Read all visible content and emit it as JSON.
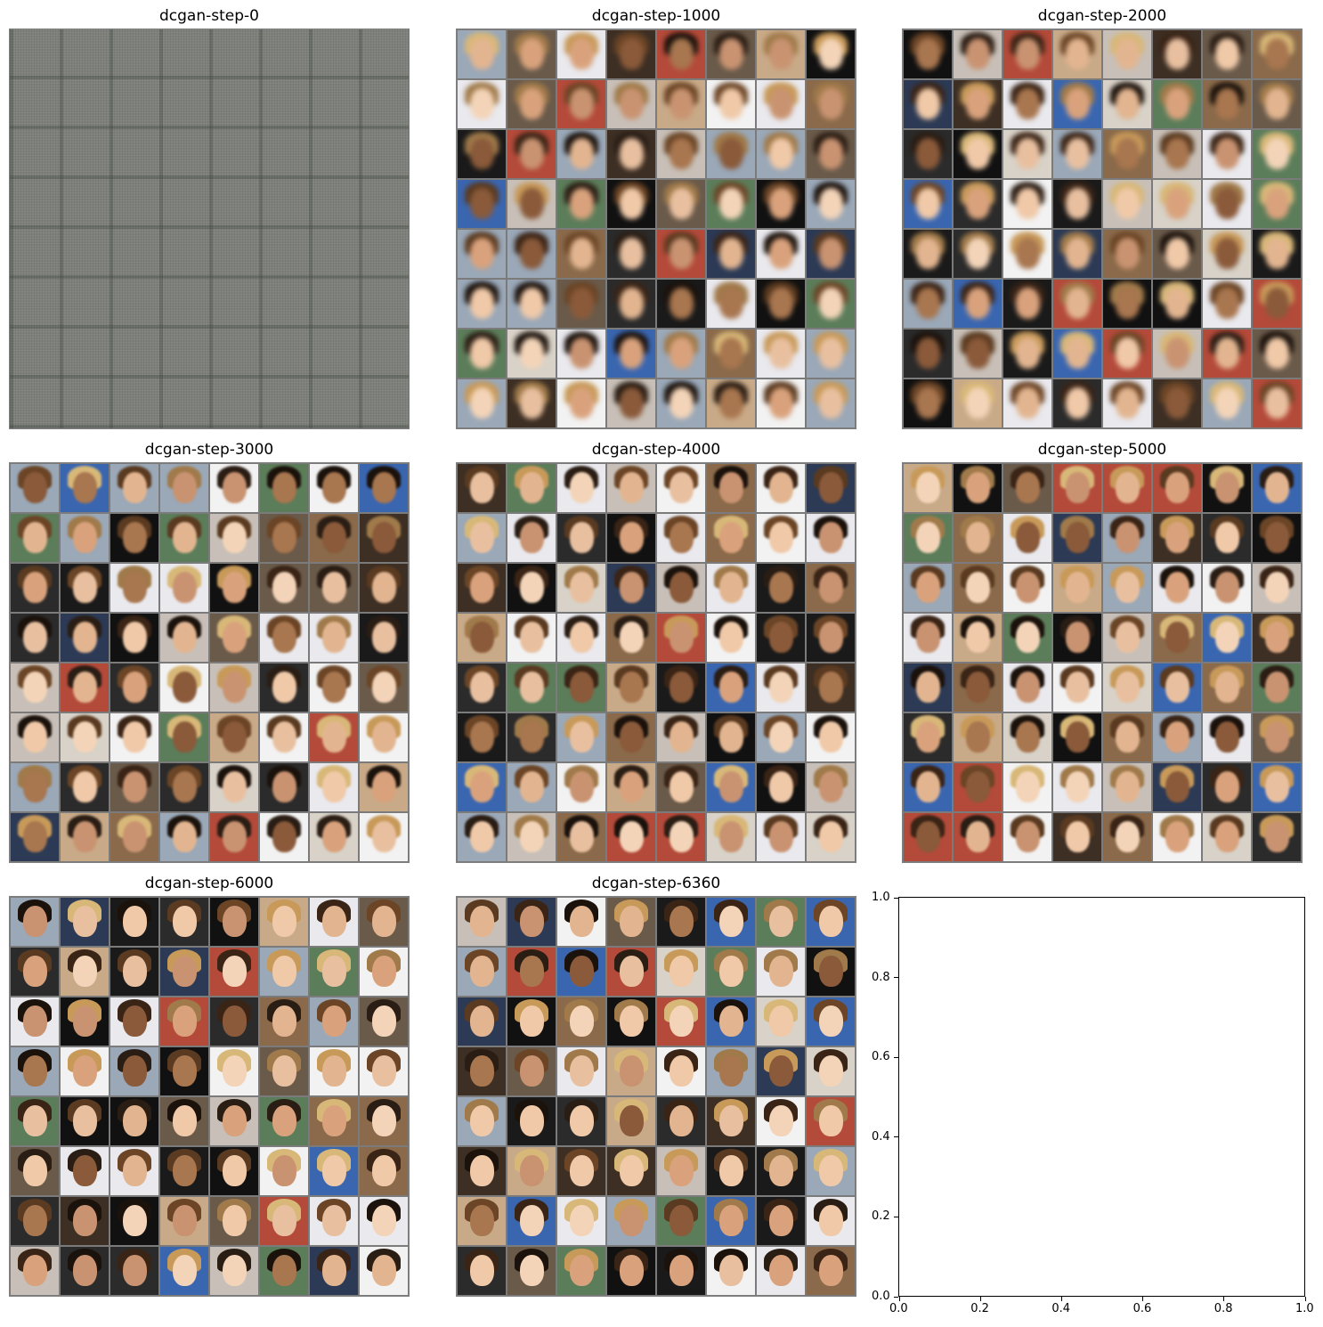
{
  "panels": [
    {
      "title": "dcgan-step-0",
      "style": "noise"
    },
    {
      "title": "dcgan-step-1000",
      "style": "blurred"
    },
    {
      "title": "dcgan-step-2000",
      "style": "blurred"
    },
    {
      "title": "dcgan-step-3000",
      "style": "soft"
    },
    {
      "title": "dcgan-step-4000",
      "style": "soft"
    },
    {
      "title": "dcgan-step-5000",
      "style": "soft"
    },
    {
      "title": "dcgan-step-6000",
      "style": "sharp"
    },
    {
      "title": "dcgan-step-6360",
      "style": "sharp"
    }
  ],
  "grid": {
    "rows": 8,
    "cols": 8
  },
  "empty_axes": {
    "x_ticks": [
      "0.0",
      "0.2",
      "0.4",
      "0.6",
      "0.8",
      "1.0"
    ],
    "y_ticks": [
      "0.0",
      "0.2",
      "0.4",
      "0.6",
      "0.8",
      "1.0"
    ]
  }
}
